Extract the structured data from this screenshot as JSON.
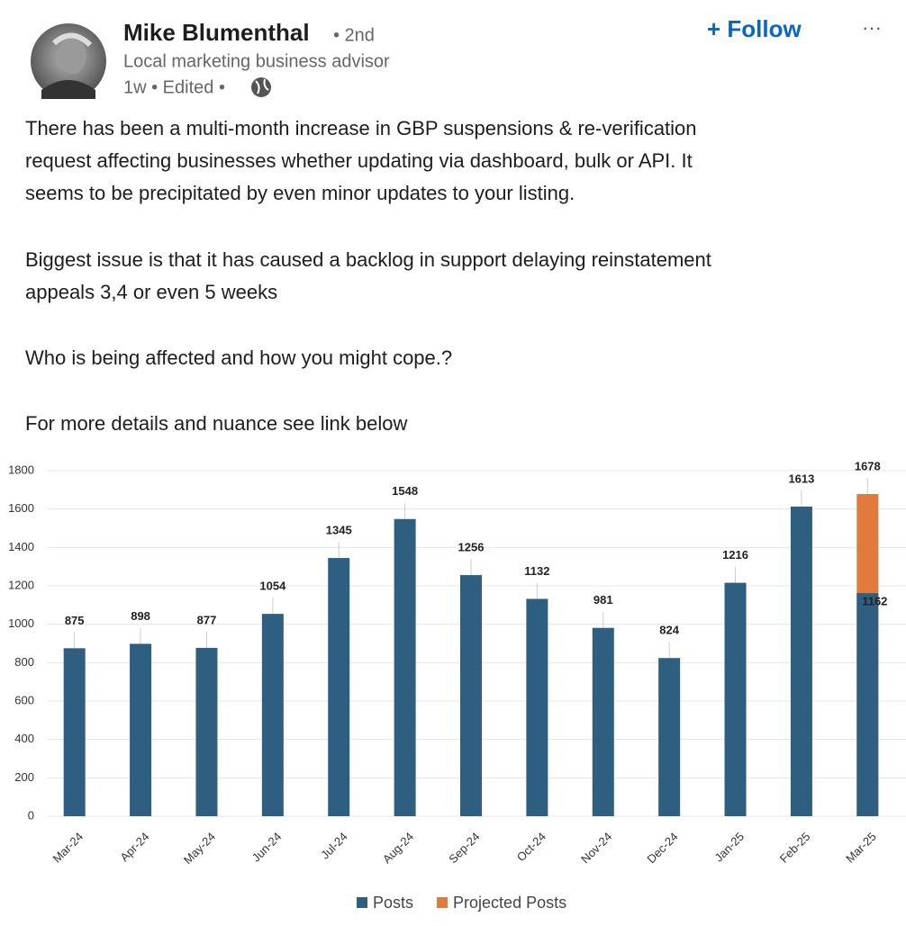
{
  "post": {
    "author": "Mike Blumenthal",
    "degree": "• 2nd",
    "headline": "Local marketing business advisor",
    "meta": "1w • Edited •",
    "follow": "+ Follow",
    "more": "···",
    "paragraphs": [
      [
        "There has been a multi-month increase in GBP suspensions & re-verification",
        "request affecting businesses whether updating via dashboard, bulk or API. It",
        "seems to be precipitated by even minor updates to your listing."
      ],
      [
        "Biggest issue is that it has caused a backlog in support delaying reinstatement",
        "appeals 3,4 or even 5 weeks"
      ],
      [
        "Who is being affected and how you might cope.?"
      ],
      [
        "For more details and nuance see link below"
      ]
    ]
  },
  "chart_data": {
    "type": "bar",
    "categories": [
      "Mar-24",
      "Apr-24",
      "May-24",
      "Jun-24",
      "Jul-24",
      "Aug-24",
      "Sep-24",
      "Oct-24",
      "Nov-24",
      "Dec-24",
      "Jan-25",
      "Feb-25",
      "Mar-25"
    ],
    "series": [
      {
        "name": "Posts",
        "color": "#2e5f80",
        "values": [
          875,
          898,
          877,
          1054,
          1345,
          1548,
          1256,
          1132,
          981,
          824,
          1216,
          1613,
          1162
        ]
      },
      {
        "name": "Projected Posts",
        "color": "#e07b3c",
        "values": [
          null,
          null,
          null,
          null,
          null,
          null,
          null,
          null,
          null,
          null,
          null,
          null,
          1678
        ]
      }
    ],
    "ylim": [
      0,
      1800
    ],
    "yticks": [
      0,
      200,
      400,
      600,
      800,
      1000,
      1200,
      1400,
      1600,
      1800
    ],
    "grid": true,
    "legend": "bottom"
  }
}
